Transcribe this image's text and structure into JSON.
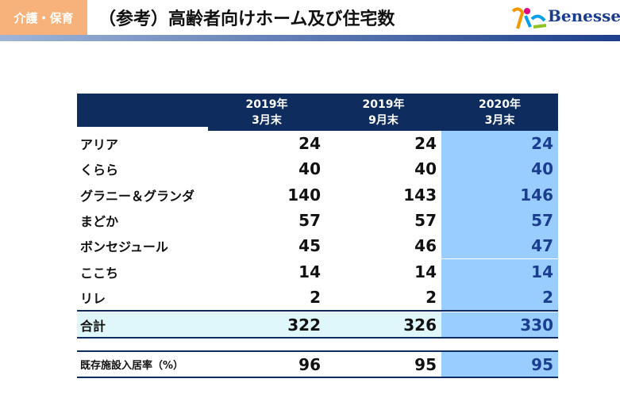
{
  "header": {
    "tag": "介護・保育",
    "title": "（参考）高齢者向けホーム及び住宅数",
    "logo": "Benesse"
  },
  "table": {
    "columns": [
      [
        "2019年",
        "3月末"
      ],
      [
        "2019年",
        "9月末"
      ],
      [
        "2020年",
        "3月末"
      ]
    ],
    "rows": [
      {
        "label": "アリア",
        "values": [
          24,
          24,
          24
        ]
      },
      {
        "label": "くらら",
        "values": [
          40,
          40,
          40
        ]
      },
      {
        "label": "グラニー＆グランダ",
        "values": [
          140,
          143,
          146
        ]
      },
      {
        "label": "まどか",
        "values": [
          57,
          57,
          57
        ]
      },
      {
        "label": "ボンセジュール",
        "values": [
          45,
          46,
          47
        ]
      },
      {
        "label": "ここち",
        "values": [
          14,
          14,
          14
        ]
      },
      {
        "label": "リレ",
        "values": [
          2,
          2,
          2
        ]
      }
    ],
    "total": {
      "label": "合計",
      "values": [
        322,
        326,
        330
      ]
    },
    "occupancy": {
      "label": "既存施設入居率（%）",
      "values": [
        96,
        95,
        95
      ]
    }
  }
}
